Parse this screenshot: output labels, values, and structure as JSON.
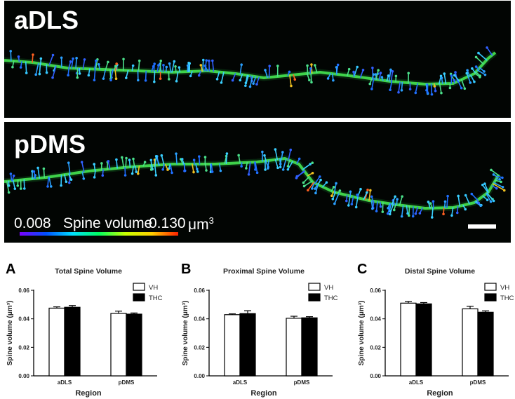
{
  "micrographs": [
    {
      "label": "aDLS"
    },
    {
      "label": "pDMS"
    }
  ],
  "colorbar": {
    "min_label": "0.008",
    "title": "Spine volume",
    "max_label": "0.130",
    "unit": "μm",
    "unit_exp": "3",
    "colors": [
      "#7a00ff",
      "#0050ff",
      "#00e0ff",
      "#00ff60",
      "#c8ff00",
      "#ffd000",
      "#ff2000"
    ]
  },
  "colors": {
    "vh": "#ffffff",
    "thc": "#000000",
    "dendrite": "#3fd24a"
  },
  "chart_data": [
    {
      "panel": "A",
      "type": "bar",
      "title": "Total Spine Volume",
      "xlabel": "Region",
      "ylabel": "Spine volume (μm³)",
      "categories": [
        "aDLS",
        "pDMS"
      ],
      "ylim": [
        0,
        0.06
      ],
      "yticks": [
        "0.00",
        "0.02",
        "0.04",
        "0.06"
      ],
      "series": [
        {
          "name": "VH",
          "values": [
            0.0475,
            0.0438
          ],
          "errors": [
            0.0009,
            0.0016
          ]
        },
        {
          "name": "THC",
          "values": [
            0.0481,
            0.0433
          ],
          "errors": [
            0.0012,
            0.0008
          ]
        }
      ]
    },
    {
      "panel": "B",
      "type": "bar",
      "title": "Proximal  Spine Volume",
      "xlabel": "Region",
      "ylabel": "Spine volume (μm³)",
      "categories": [
        "aDLS",
        "pDMS"
      ],
      "ylim": [
        0,
        0.06
      ],
      "yticks": [
        "0.00",
        "0.02",
        "0.04",
        "0.06"
      ],
      "series": [
        {
          "name": "VH",
          "values": [
            0.0429,
            0.0404
          ],
          "errors": [
            0.0006,
            0.0014
          ]
        },
        {
          "name": "THC",
          "values": [
            0.0437,
            0.0407
          ],
          "errors": [
            0.002,
            0.0008
          ]
        }
      ]
    },
    {
      "panel": "C",
      "type": "bar",
      "title": "Distal Spine Volume",
      "xlabel": "Region",
      "ylabel": "Spine volume (μm³)",
      "categories": [
        "aDLS",
        "pDMS"
      ],
      "ylim": [
        0,
        0.06
      ],
      "yticks": [
        "0.00",
        "0.02",
        "0.04",
        "0.06"
      ],
      "series": [
        {
          "name": "VH",
          "values": [
            0.051,
            0.047
          ],
          "errors": [
            0.0012,
            0.0018
          ]
        },
        {
          "name": "THC",
          "values": [
            0.0505,
            0.0446
          ],
          "errors": [
            0.0009,
            0.001
          ]
        }
      ]
    }
  ]
}
